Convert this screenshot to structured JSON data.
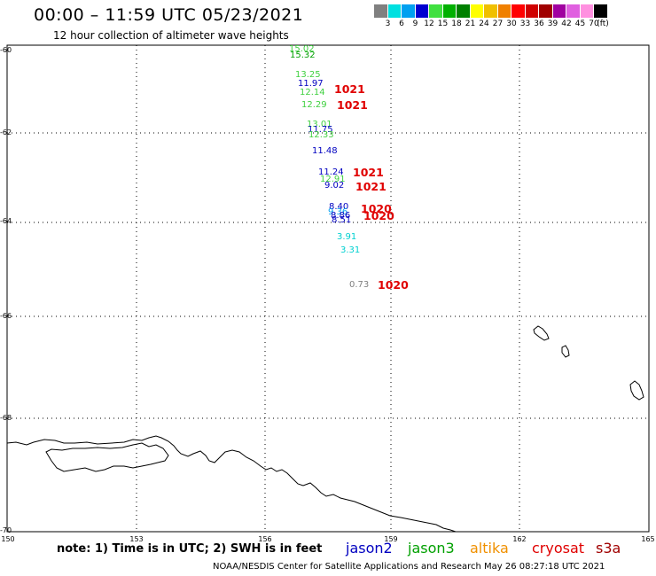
{
  "title": "00:00 – 11:59 UTC 05/23/2021",
  "subtitle": "12 hour collection of altimeter wave heights",
  "colorbar": {
    "colors": [
      "#808080",
      "#00e0e0",
      "#00a0f0",
      "#0000d0",
      "#40e040",
      "#00b000",
      "#008000",
      "#ffff00",
      "#f0c000",
      "#f08000",
      "#ff0000",
      "#d00000",
      "#a00000",
      "#a000a0",
      "#e060e0",
      "#ff90e0",
      "#000000"
    ],
    "labels": [
      "3",
      "6",
      "9",
      "12",
      "15",
      "18",
      "21",
      "24",
      "27",
      "30",
      "33",
      "36",
      "39",
      "42",
      "45",
      "70",
      "(ft)"
    ]
  },
  "axes": {
    "y_labels": [
      "-60",
      "-62",
      "-64",
      "-66",
      "-68",
      "-70"
    ],
    "x_labels": [
      "150",
      "153",
      "156",
      "159",
      "162",
      "165"
    ]
  },
  "swh_points": [
    {
      "text": "15.02",
      "color": "#40d040"
    },
    {
      "text": "15.32",
      "color": "#00a000"
    },
    {
      "text": "13.25",
      "color": "#40d040"
    },
    {
      "text": "11.97",
      "color": "#0000c0"
    },
    {
      "text": "12.14",
      "color": "#40d040"
    },
    {
      "text": "12.29",
      "color": "#40d040"
    },
    {
      "text": "13.01",
      "color": "#40d040"
    },
    {
      "text": "11.75",
      "color": "#0000c0"
    },
    {
      "text": "12.33",
      "color": "#40d040"
    },
    {
      "text": "11.48",
      "color": "#0000c0"
    },
    {
      "text": "11.24",
      "color": "#0000c0"
    },
    {
      "text": "12.91",
      "color": "#40d040"
    },
    {
      "text": "9.02",
      "color": "#0000c0"
    },
    {
      "text": "8.40",
      "color": "#0000c0"
    },
    {
      "text": "9.36",
      "color": "#00a0f0"
    },
    {
      "text": "8.86",
      "color": "#0000c0"
    },
    {
      "text": "8.51",
      "color": "#0000c0"
    },
    {
      "text": "3.91",
      "color": "#00d0d0"
    },
    {
      "text": "3.31",
      "color": "#00d0d0"
    },
    {
      "text": "0.73",
      "color": "#808080"
    }
  ],
  "pressure_labels": [
    "1021",
    "1021",
    "1021",
    "1021",
    "1020",
    "1020",
    "1020"
  ],
  "note": "note: 1) Time is in UTC; 2) SWH is in feet",
  "satellites": [
    {
      "name": "jason2",
      "color": "#0000c0"
    },
    {
      "name": "jason3",
      "color": "#00a000"
    },
    {
      "name": "altika",
      "color": "#f09000"
    },
    {
      "name": "cryosat",
      "color": "#e00000"
    },
    {
      "name": "s3a",
      "color": "#a00000"
    }
  ],
  "credit": "NOAA/NESDIS Center for Satellite Applications and Research    May 26 08:27:18 UTC 2021"
}
